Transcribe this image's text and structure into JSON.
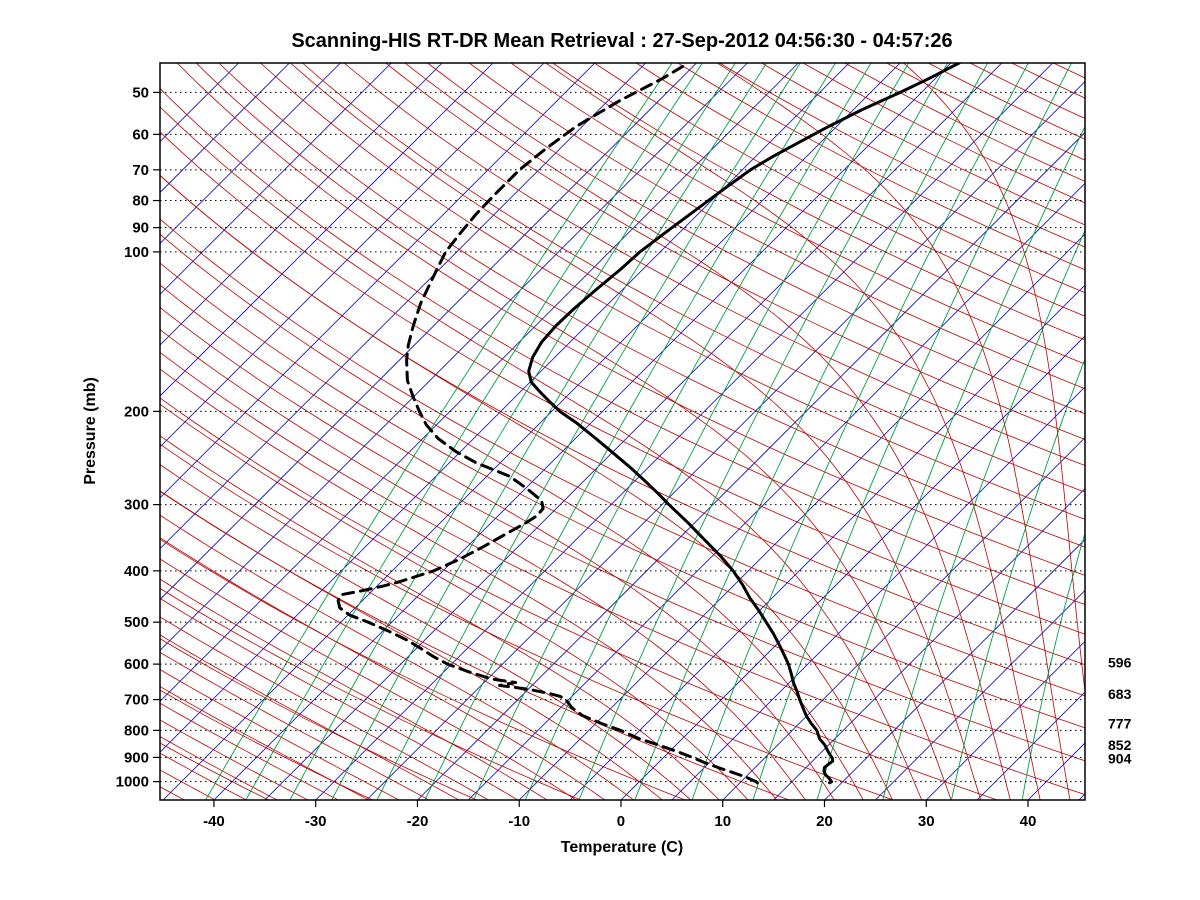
{
  "page": {
    "background": "#ffffff"
  },
  "chart_data": {
    "type": "line",
    "variant": "skew-t-log-p-sounding",
    "title": "Scanning-HIS RT-DR Mean Retrieval : 27-Sep-2012 04:56:30 - 04:57:26",
    "xlabel": "Temperature (C)",
    "ylabel": "Pressure (mb)",
    "x_ticks": [
      -40,
      -30,
      -20,
      -10,
      0,
      10,
      20,
      30,
      40
    ],
    "pressure_ticks": [
      50,
      60,
      70,
      80,
      90,
      100,
      200,
      300,
      400,
      500,
      600,
      700,
      800,
      900,
      1000
    ],
    "pressure_range_mb": [
      44,
      1083
    ],
    "temperature_range_at_surface_c": [
      -45.3,
      45.6
    ],
    "skew_deg": 45,
    "grid": "dotted horizontal isobars at labeled pressure ticks",
    "legend_position": "none",
    "right_pressure_labels": [
      596,
      683,
      777,
      852,
      904
    ],
    "series": [
      {
        "name": "temperature",
        "style": "solid",
        "color": "#000000",
        "width": 3,
        "points_p_mb_vs_T_c": [
          [
            1005,
            18.8
          ],
          [
            1000,
            18.9
          ],
          [
            985,
            18.3
          ],
          [
            970,
            17.6
          ],
          [
            955,
            17.1
          ],
          [
            940,
            16.8
          ],
          [
            925,
            16.9
          ],
          [
            915,
            17.0
          ],
          [
            904,
            16.7
          ],
          [
            890,
            16.1
          ],
          [
            870,
            15.3
          ],
          [
            852,
            14.6
          ],
          [
            830,
            13.5
          ],
          [
            800,
            12.4
          ],
          [
            777,
            11.2
          ],
          [
            750,
            9.9
          ],
          [
            725,
            8.8
          ],
          [
            700,
            7.7
          ],
          [
            675,
            6.6
          ],
          [
            650,
            5.4
          ],
          [
            625,
            4.3
          ],
          [
            600,
            3.1
          ],
          [
            575,
            1.7
          ],
          [
            550,
            0.2
          ],
          [
            525,
            -1.4
          ],
          [
            500,
            -3.2
          ],
          [
            475,
            -5.1
          ],
          [
            450,
            -7.2
          ],
          [
            425,
            -9.2
          ],
          [
            400,
            -11.5
          ],
          [
            375,
            -14.2
          ],
          [
            350,
            -17.3
          ],
          [
            325,
            -20.6
          ],
          [
            300,
            -24.3
          ],
          [
            285,
            -26.6
          ],
          [
            270,
            -29.1
          ],
          [
            255,
            -31.8
          ],
          [
            240,
            -34.8
          ],
          [
            225,
            -38.0
          ],
          [
            210,
            -41.5
          ],
          [
            200,
            -44.2
          ],
          [
            192,
            -46.1
          ],
          [
            184,
            -48.0
          ],
          [
            176,
            -49.9
          ],
          [
            168,
            -51.2
          ],
          [
            158,
            -52.2
          ],
          [
            148,
            -52.8
          ],
          [
            138,
            -53.0
          ],
          [
            128,
            -52.9
          ],
          [
            118,
            -52.6
          ],
          [
            108,
            -52.2
          ],
          [
            100,
            -52.0
          ],
          [
            92,
            -51.4
          ],
          [
            84,
            -50.7
          ],
          [
            76,
            -49.9
          ],
          [
            70,
            -49.2
          ],
          [
            66,
            -48.3
          ],
          [
            62,
            -47.1
          ],
          [
            58,
            -45.8
          ],
          [
            54,
            -44.2
          ],
          [
            50,
            -42.1
          ],
          [
            47,
            -40.6
          ],
          [
            44,
            -39.2
          ]
        ]
      },
      {
        "name": "dewpoint",
        "style": "dashed",
        "color": "#000000",
        "width": 3,
        "points_p_mb_vs_T_c": [
          [
            1005,
            11.7
          ],
          [
            1000,
            11.5
          ],
          [
            980,
            10.0
          ],
          [
            960,
            8.2
          ],
          [
            940,
            6.3
          ],
          [
            920,
            4.5
          ],
          [
            904,
            3.2
          ],
          [
            880,
            1.0
          ],
          [
            852,
            -1.8
          ],
          [
            830,
            -4.2
          ],
          [
            800,
            -6.9
          ],
          [
            777,
            -9.4
          ],
          [
            750,
            -12.1
          ],
          [
            725,
            -13.9
          ],
          [
            700,
            -15.3
          ],
          [
            690,
            -16.2
          ],
          [
            683,
            -17.3
          ],
          [
            670,
            -19.8
          ],
          [
            658,
            -23.2
          ],
          [
            650,
            -21.9
          ],
          [
            640,
            -24.6
          ],
          [
            620,
            -27.6
          ],
          [
            600,
            -30.4
          ],
          [
            580,
            -32.6
          ],
          [
            560,
            -34.6
          ],
          [
            540,
            -36.8
          ],
          [
            520,
            -39.4
          ],
          [
            500,
            -42.3
          ],
          [
            485,
            -44.8
          ],
          [
            470,
            -46.5
          ],
          [
            455,
            -47.4
          ],
          [
            444,
            -47.7
          ],
          [
            436,
            -46.0
          ],
          [
            428,
            -44.5
          ],
          [
            420,
            -43.3
          ],
          [
            410,
            -42.1
          ],
          [
            400,
            -40.9
          ],
          [
            380,
            -39.5
          ],
          [
            360,
            -38.4
          ],
          [
            340,
            -37.4
          ],
          [
            325,
            -36.6
          ],
          [
            315,
            -36.2
          ],
          [
            305,
            -36.3
          ],
          [
            295,
            -37.2
          ],
          [
            280,
            -39.8
          ],
          [
            265,
            -42.8
          ],
          [
            250,
            -47.4
          ],
          [
            238,
            -50.5
          ],
          [
            225,
            -53.5
          ],
          [
            212,
            -56.0
          ],
          [
            200,
            -58.0
          ],
          [
            188,
            -60.0
          ],
          [
            175,
            -62.2
          ],
          [
            160,
            -64.3
          ],
          [
            150,
            -65.6
          ],
          [
            138,
            -67.0
          ],
          [
            125,
            -68.5
          ],
          [
            112,
            -69.8
          ],
          [
            100,
            -71.1
          ],
          [
            92,
            -71.5
          ],
          [
            85,
            -71.8
          ],
          [
            78,
            -71.9
          ],
          [
            70,
            -71.9
          ],
          [
            64,
            -71.4
          ],
          [
            58,
            -70.6
          ],
          [
            52,
            -68.9
          ],
          [
            47,
            -66.8
          ],
          [
            44,
            -65.8
          ]
        ]
      }
    ],
    "background_lines": {
      "isotherms": {
        "color": "#0000BE",
        "start_c": -110,
        "end_c": 45,
        "step_c": 5
      },
      "dry_adiabats": {
        "color": "#BE0000",
        "theta_start_c": -40,
        "theta_end_c": 320,
        "step_c": 10
      },
      "moist_adiabats": {
        "color": "#BE0000",
        "thetaw_start_c": -57,
        "thetaw_end_c": 45,
        "step_c": 3
      },
      "mixing_ratio_lines": {
        "color": "#00A040",
        "values_g_per_kg": [
          0.1,
          0.15,
          0.23,
          0.34,
          0.51,
          0.77,
          1.15,
          1.73,
          2.6,
          3.9,
          5.8,
          8.7,
          13.1,
          19.6,
          29.4,
          44.1
        ]
      },
      "isobar_grid": {
        "color": "#000000",
        "style": "dotted"
      }
    }
  }
}
